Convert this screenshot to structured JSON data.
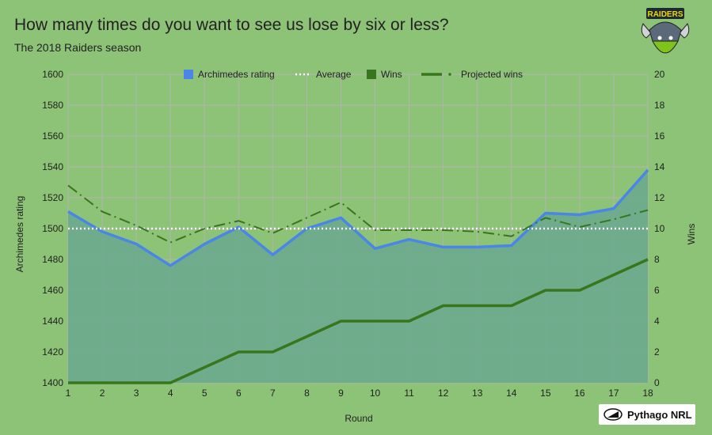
{
  "title": "How many times do you want to see us lose by six or less?",
  "subtitle": "The 2018 Raiders season",
  "logo_text": "RAIDERS",
  "brand_text": "Pythago NRL",
  "colors": {
    "background": "#8dc377",
    "area_fill": "#6aa88f",
    "rating_line": "#4a86e8",
    "average_line": "#ffffff",
    "wins_line": "#38761d",
    "projected_line": "#38761d",
    "grid": "#b3b3b3",
    "text": "#222222"
  },
  "chart_data": {
    "type": "line",
    "title": "How many times do you want to see us lose by six or less?",
    "subtitle": "The 2018 Raiders season",
    "xlabel": "Round",
    "ylabel": "Archimedes rating",
    "y2label": "Wins",
    "x": [
      1,
      2,
      3,
      4,
      5,
      6,
      7,
      8,
      9,
      10,
      11,
      12,
      13,
      14,
      15,
      16,
      17,
      18
    ],
    "ylim": [
      1400,
      1600
    ],
    "y_ticks": [
      1400,
      1420,
      1440,
      1460,
      1480,
      1500,
      1520,
      1540,
      1560,
      1580,
      1600
    ],
    "y2lim": [
      0,
      20
    ],
    "y2_ticks": [
      0,
      2,
      4,
      6,
      8,
      10,
      12,
      14,
      16,
      18,
      20
    ],
    "grid": true,
    "legend_position": "top",
    "series": [
      {
        "name": "Archimedes rating",
        "axis": "left",
        "style": "solid-area",
        "values": [
          1511,
          1498,
          1490,
          1476,
          1490,
          1501,
          1483,
          1500,
          1507,
          1487,
          1493,
          1488,
          1488,
          1489,
          1510,
          1509,
          1513,
          1538
        ]
      },
      {
        "name": "Average",
        "axis": "left",
        "style": "dotted",
        "values": [
          1500,
          1500,
          1500,
          1500,
          1500,
          1500,
          1500,
          1500,
          1500,
          1500,
          1500,
          1500,
          1500,
          1500,
          1500,
          1500,
          1500,
          1500
        ]
      },
      {
        "name": "Wins",
        "axis": "right",
        "style": "solid",
        "values": [
          0,
          0,
          0,
          0,
          1,
          2,
          2,
          3,
          4,
          4,
          4,
          5,
          5,
          5,
          6,
          6,
          7,
          8
        ]
      },
      {
        "name": "Projected wins",
        "axis": "right",
        "style": "dashdot",
        "values": [
          12.8,
          11.1,
          10.2,
          9.1,
          10.0,
          10.5,
          9.7,
          10.7,
          11.7,
          9.9,
          9.9,
          9.9,
          9.8,
          9.5,
          10.7,
          10.1,
          10.6,
          11.2
        ]
      }
    ]
  }
}
